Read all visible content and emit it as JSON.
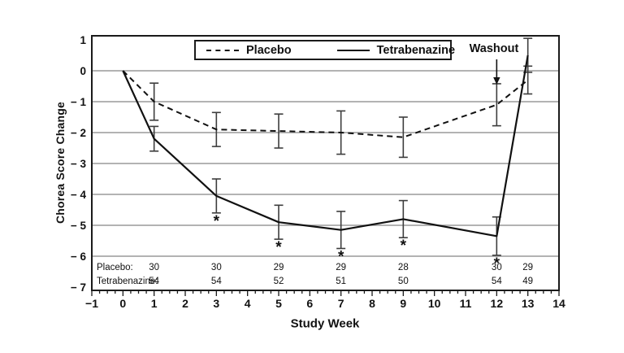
{
  "chart_data": {
    "type": "line",
    "title": "",
    "xlabel": "Study Week",
    "ylabel": "Chorea Score Change",
    "xlim": [
      -1,
      14
    ],
    "ylim": [
      -7,
      1
    ],
    "grid": true,
    "legend_position": "top-center",
    "x_tick_values": [
      -1,
      0,
      1,
      2,
      3,
      4,
      5,
      6,
      7,
      8,
      9,
      10,
      11,
      12,
      13,
      14
    ],
    "x_tick_labels": [
      "−1",
      "0",
      "1",
      "2",
      "3",
      "4",
      "5",
      "6",
      "7",
      "8",
      "9",
      "10",
      "11",
      "12",
      "13",
      "14"
    ],
    "y_tick_values": [
      1,
      0,
      -1,
      -2,
      -3,
      -4,
      -5,
      -6,
      -7
    ],
    "y_tick_labels": [
      "1",
      "0",
      "− 1",
      "− 2",
      "− 3",
      "− 4",
      "− 5",
      "− 6",
      "− 7"
    ],
    "gridline_values": [
      0,
      -1,
      -2,
      -3,
      -4,
      -5,
      -6
    ],
    "weeks": [
      0,
      1,
      3,
      5,
      7,
      9,
      12,
      13
    ],
    "series": [
      {
        "name": "Placebo",
        "line_style": "dashed",
        "values": [
          0,
          -1.0,
          -1.9,
          -1.95,
          -2.0,
          -2.15,
          -1.1,
          -0.3
        ],
        "error": [
          0,
          0.6,
          0.55,
          0.55,
          0.7,
          0.65,
          0.68,
          0.45
        ],
        "significant_weeks": []
      },
      {
        "name": "Tetrabenazine",
        "line_style": "solid",
        "values": [
          0,
          -2.2,
          -4.05,
          -4.9,
          -5.15,
          -4.8,
          -5.35,
          0.5
        ],
        "error": [
          0,
          0.4,
          0.55,
          0.55,
          0.6,
          0.6,
          0.62,
          0.55
        ],
        "significant_weeks": [
          3,
          5,
          7,
          9,
          12
        ]
      }
    ],
    "significance_marker": "*",
    "annotations": [
      {
        "text": "Washout",
        "week": 12
      }
    ],
    "n_table": {
      "column_weeks": [
        1,
        3,
        5,
        7,
        9,
        12,
        13
      ],
      "rows": [
        {
          "label": "Placebo:",
          "values": [
            "30",
            "30",
            "29",
            "29",
            "28",
            "30",
            "29"
          ]
        },
        {
          "label": "Tetrabenazine:",
          "values": [
            "54",
            "54",
            "52",
            "51",
            "50",
            "54",
            "49"
          ]
        }
      ]
    },
    "colors": {
      "line": "#111111",
      "error_bar": "#3d3d3d",
      "grid": "#9a9a9a",
      "frame": "#1a1a1a",
      "background": "#ffffff"
    }
  }
}
